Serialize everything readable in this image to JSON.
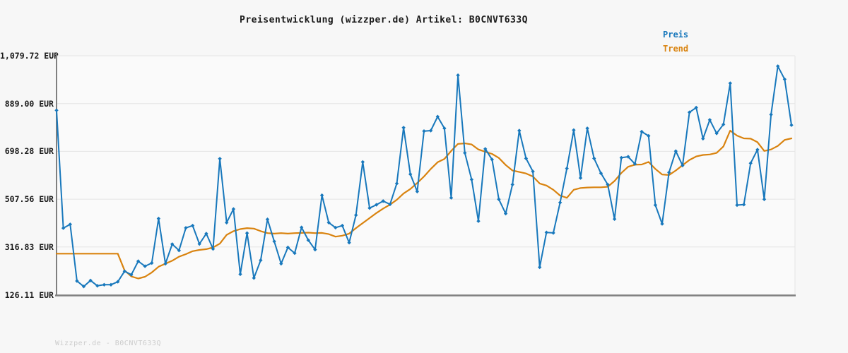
{
  "title": "Preisentwicklung (wizzper.de) Artikel: B0CNVT633Q",
  "footer": "Wizzper.de - B0CNVT633Q",
  "legend": [
    {
      "label": "Preis",
      "color": "#1878bc"
    },
    {
      "label": "Trend",
      "color": "#d9830f"
    }
  ],
  "y_axis": {
    "unit": "EUR",
    "tick_labels": [
      "1,079.72 EUR",
      "889.00 EUR",
      "698.28 EUR",
      "507.56 EUR",
      "316.83 EUR",
      "126.11 EUR"
    ],
    "tick_values": [
      1079.72,
      889.0,
      698.28,
      507.56,
      316.83,
      126.11
    ]
  },
  "colors": {
    "background": "#f7f7f7",
    "plot_background": "#fafafa",
    "gridline": "#e4e4e4",
    "axis": "#808080",
    "price_line": "#1878bc",
    "trend_line": "#d9830f",
    "footer_text": "#cccccc"
  },
  "chart_data": {
    "type": "line",
    "title": "Preisentwicklung (wizzper.de) Artikel: B0CNVT633Q",
    "xlabel": "",
    "ylabel": "EUR",
    "ylim": [
      126.11,
      1079.72
    ],
    "grid": true,
    "legend_position": "top-right",
    "x_note": "unlabeled time axis, ~109 evenly spaced observations",
    "series": [
      {
        "name": "Preis",
        "color": "#1878bc",
        "marker": "diamond",
        "values": [
          862,
          392,
          407,
          181,
          159,
          183,
          162,
          166,
          166,
          178,
          220,
          206,
          260,
          240,
          253,
          430,
          250,
          328,
          303,
          393,
          402,
          329,
          370,
          309,
          669,
          414,
          468,
          208,
          372,
          193,
          264,
          427,
          339,
          250,
          315,
          292,
          395,
          344,
          306,
          523,
          414,
          394,
          402,
          334,
          444,
          656,
          472,
          485,
          500,
          487,
          570,
          793,
          607,
          538,
          779,
          781,
          837,
          790,
          513,
          1002,
          692,
          586,
          420,
          708,
          666,
          507,
          450,
          566,
          781,
          670,
          618,
          236,
          375,
          373,
          494,
          630,
          783,
          592,
          790,
          670,
          611,
          566,
          428,
          673,
          677,
          648,
          777,
          760,
          484,
          409,
          614,
          699,
          642,
          854,
          873,
          749,
          824,
          770,
          806,
          970,
          484,
          486,
          651,
          705,
          507,
          845,
          1038,
          986,
          803
        ]
      },
      {
        "name": "Trend",
        "color": "#d9830f",
        "marker": "none",
        "values": [
          290,
          290,
          290,
          290,
          290,
          290,
          290,
          290,
          290,
          290,
          223,
          199,
          191,
          198,
          215,
          238,
          250,
          262,
          278,
          288,
          300,
          305,
          308,
          315,
          330,
          365,
          380,
          388,
          392,
          390,
          380,
          372,
          370,
          372,
          370,
          372,
          373,
          374,
          372,
          373,
          368,
          358,
          362,
          370,
          392,
          412,
          432,
          452,
          470,
          486,
          505,
          530,
          548,
          572,
          598,
          628,
          655,
          668,
          700,
          728,
          730,
          726,
          706,
          697,
          688,
          672,
          644,
          622,
          616,
          610,
          598,
          570,
          562,
          545,
          522,
          513,
          545,
          552,
          554,
          555,
          555,
          557,
          580,
          612,
          637,
          645,
          646,
          656,
          628,
          606,
          604,
          622,
          643,
          664,
          678,
          684,
          686,
          692,
          718,
          781,
          761,
          750,
          749,
          735,
          700,
          706,
          720,
          744,
          750
        ]
      }
    ]
  }
}
